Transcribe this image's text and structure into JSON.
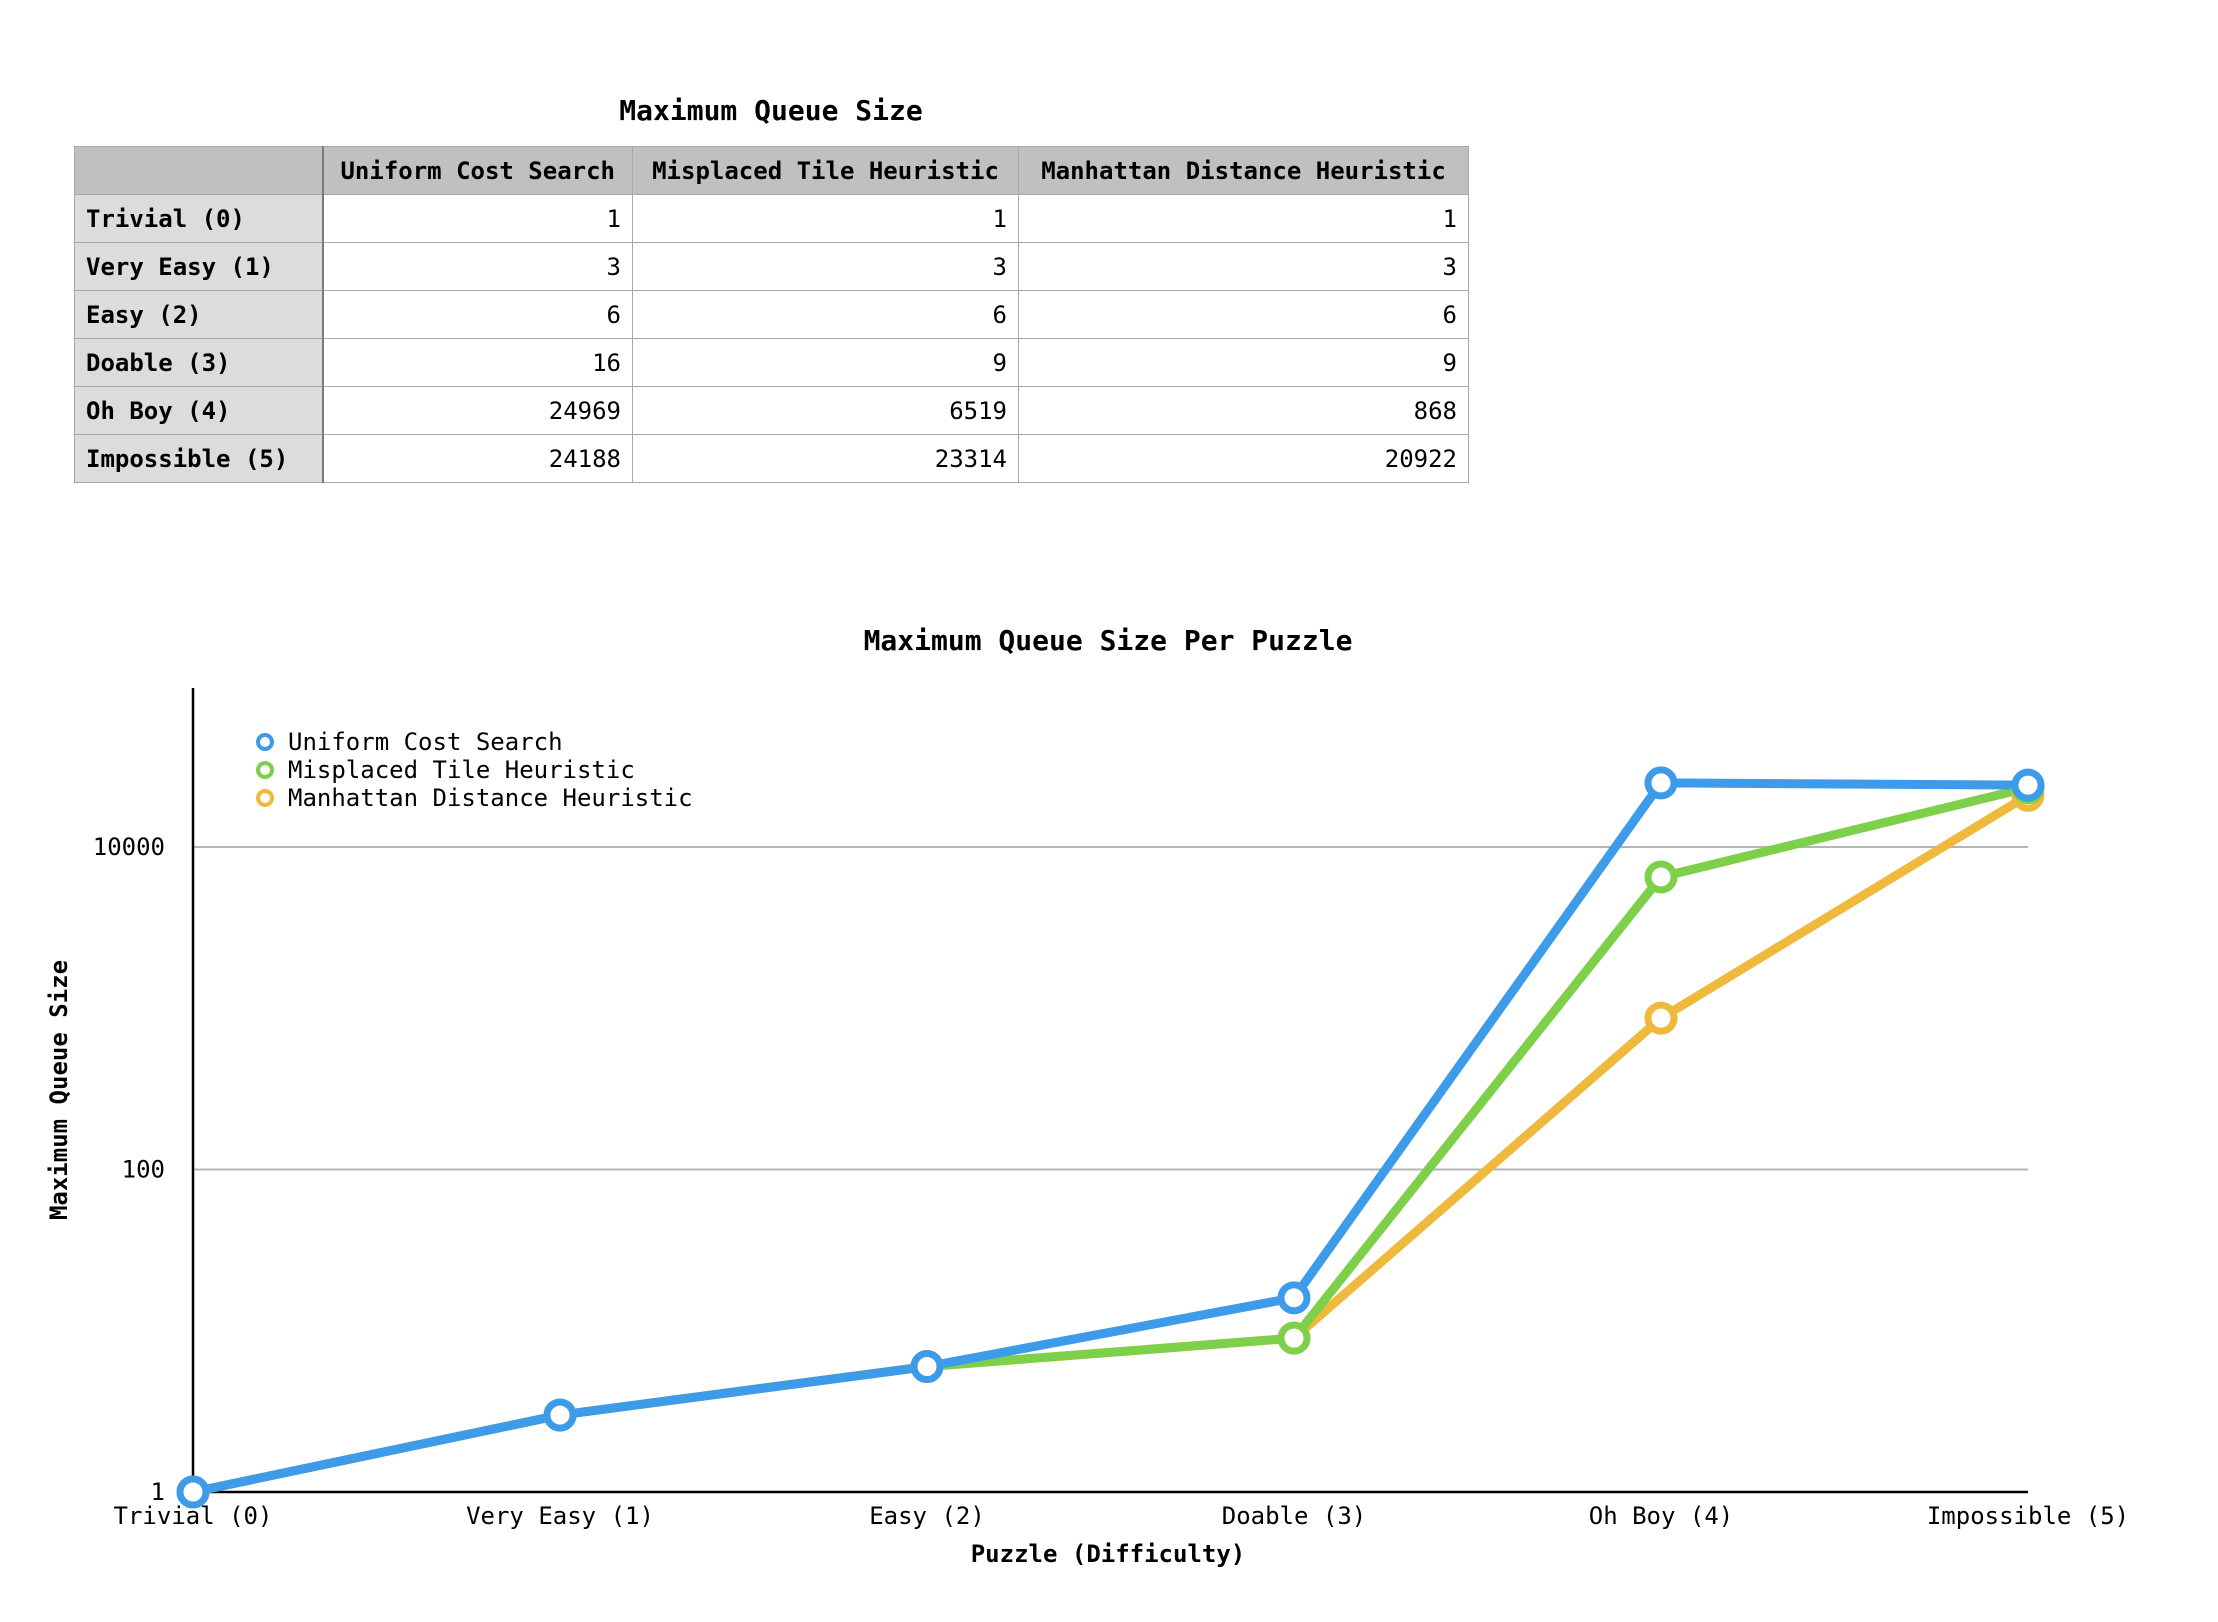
{
  "table": {
    "title": "Maximum Queue Size",
    "columns": [
      "",
      "Uniform Cost Search",
      "Misplaced Tile Heuristic",
      "Manhattan Distance Heuristic"
    ],
    "rows": [
      {
        "label": "Trivial (0)",
        "values": [
          "1",
          "1",
          "1"
        ]
      },
      {
        "label": "Very Easy (1)",
        "values": [
          "3",
          "3",
          "3"
        ]
      },
      {
        "label": "Easy (2)",
        "values": [
          "6",
          "6",
          "6"
        ]
      },
      {
        "label": "Doable (3)",
        "values": [
          "16",
          "9",
          "9"
        ]
      },
      {
        "label": "Oh Boy (4)",
        "values": [
          "24969",
          "6519",
          "868"
        ]
      },
      {
        "label": "Impossible (5)",
        "values": [
          "24188",
          "23314",
          "20922"
        ]
      }
    ]
  },
  "chart_data": {
    "type": "line",
    "title": "Maximum Queue Size Per Puzzle",
    "xlabel": "Puzzle (Difficulty)",
    "ylabel": "Maximum Queue Size",
    "yscale": "log",
    "ylim": [
      1,
      100000
    ],
    "yticks": [
      1,
      100,
      10000
    ],
    "ytick_labels": [
      "1",
      "100",
      "10000"
    ],
    "grid": "horizontal",
    "legend_position": "top-left",
    "categories": [
      "Trivial (0)",
      "Very Easy (1)",
      "Easy (2)",
      "Doable (3)",
      "Oh Boy (4)",
      "Impossible (5)"
    ],
    "series": [
      {
        "name": "Uniform Cost Search",
        "color": "#3d9be9",
        "values": [
          1,
          3,
          6,
          16,
          24969,
          24188
        ]
      },
      {
        "name": "Misplaced Tile Heuristic",
        "color": "#7ed04b",
        "values": [
          1,
          3,
          6,
          9,
          6519,
          23314
        ]
      },
      {
        "name": "Manhattan Distance Heuristic",
        "color": "#efb93e",
        "values": [
          1,
          3,
          6,
          9,
          868,
          20922
        ]
      }
    ]
  }
}
